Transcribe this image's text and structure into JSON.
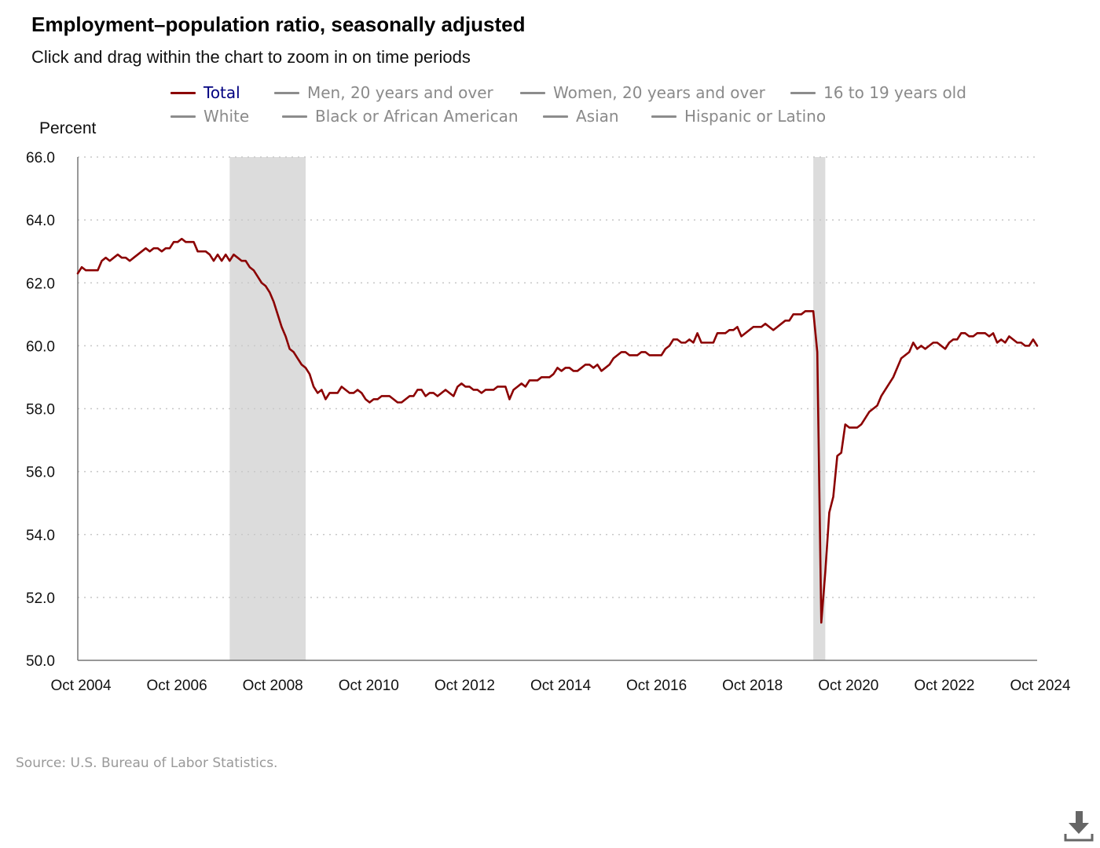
{
  "title": "Employment–population ratio, seasonally adjusted",
  "subtitle": "Click and drag within the chart to zoom in on time periods",
  "legend": {
    "items": [
      {
        "label": "Total",
        "active": true
      },
      {
        "label": "Men, 20 years and over",
        "active": false
      },
      {
        "label": "Women, 20 years and over",
        "active": false
      },
      {
        "label": "16 to 19 years old",
        "active": false
      },
      {
        "label": "White",
        "active": false
      },
      {
        "label": "Black or African American",
        "active": false
      },
      {
        "label": "Asian",
        "active": false
      },
      {
        "label": "Hispanic or Latino",
        "active": false
      }
    ]
  },
  "source": "Source: U.S. Bureau of Labor Statistics.",
  "icons": {
    "download": "download-icon"
  },
  "colors": {
    "series": "#8b0000",
    "inactive": "#8c8c8c",
    "recession": "#dcdcdc",
    "grid": "#c8c8c8",
    "active_label": "#000080"
  },
  "chart_data": {
    "type": "line",
    "ylabel": "Percent",
    "ylim": [
      50,
      66
    ],
    "yticks": [
      "66.0",
      "64.0",
      "62.0",
      "60.0",
      "58.0",
      "56.0",
      "54.0",
      "52.0",
      "50.0"
    ],
    "xlim": [
      "2004-10",
      "2024-10"
    ],
    "xticks": [
      "Oct 2004",
      "Oct 2006",
      "Oct 2008",
      "Oct 2010",
      "Oct 2012",
      "Oct 2014",
      "Oct 2016",
      "Oct 2018",
      "Oct 2020",
      "Oct 2022",
      "Oct 2024"
    ],
    "grid": "horizontal dotted",
    "recessions": [
      [
        "2007-12",
        "2009-06"
      ],
      [
        "2020-02",
        "2020-04"
      ]
    ],
    "series": [
      {
        "name": "Total",
        "points": [
          [
            "2004-10",
            62.3
          ],
          [
            "2004-11",
            62.5
          ],
          [
            "2004-12",
            62.4
          ],
          [
            "2005-01",
            62.4
          ],
          [
            "2005-02",
            62.4
          ],
          [
            "2005-03",
            62.4
          ],
          [
            "2005-04",
            62.7
          ],
          [
            "2005-05",
            62.8
          ],
          [
            "2005-06",
            62.7
          ],
          [
            "2005-07",
            62.8
          ],
          [
            "2005-08",
            62.9
          ],
          [
            "2005-09",
            62.8
          ],
          [
            "2005-10",
            62.8
          ],
          [
            "2005-11",
            62.7
          ],
          [
            "2005-12",
            62.8
          ],
          [
            "2006-01",
            62.9
          ],
          [
            "2006-02",
            63.0
          ],
          [
            "2006-03",
            63.1
          ],
          [
            "2006-04",
            63.0
          ],
          [
            "2006-05",
            63.1
          ],
          [
            "2006-06",
            63.1
          ],
          [
            "2006-07",
            63.0
          ],
          [
            "2006-08",
            63.1
          ],
          [
            "2006-09",
            63.1
          ],
          [
            "2006-10",
            63.3
          ],
          [
            "2006-11",
            63.3
          ],
          [
            "2006-12",
            63.4
          ],
          [
            "2007-01",
            63.3
          ],
          [
            "2007-02",
            63.3
          ],
          [
            "2007-03",
            63.3
          ],
          [
            "2007-04",
            63.0
          ],
          [
            "2007-05",
            63.0
          ],
          [
            "2007-06",
            63.0
          ],
          [
            "2007-07",
            62.9
          ],
          [
            "2007-08",
            62.7
          ],
          [
            "2007-09",
            62.9
          ],
          [
            "2007-10",
            62.7
          ],
          [
            "2007-11",
            62.9
          ],
          [
            "2007-12",
            62.7
          ],
          [
            "2008-01",
            62.9
          ],
          [
            "2008-02",
            62.8
          ],
          [
            "2008-03",
            62.7
          ],
          [
            "2008-04",
            62.7
          ],
          [
            "2008-05",
            62.5
          ],
          [
            "2008-06",
            62.4
          ],
          [
            "2008-07",
            62.2
          ],
          [
            "2008-08",
            62.0
          ],
          [
            "2008-09",
            61.9
          ],
          [
            "2008-10",
            61.7
          ],
          [
            "2008-11",
            61.4
          ],
          [
            "2008-12",
            61.0
          ],
          [
            "2009-01",
            60.6
          ],
          [
            "2009-02",
            60.3
          ],
          [
            "2009-03",
            59.9
          ],
          [
            "2009-04",
            59.8
          ],
          [
            "2009-05",
            59.6
          ],
          [
            "2009-06",
            59.4
          ],
          [
            "2009-07",
            59.3
          ],
          [
            "2009-08",
            59.1
          ],
          [
            "2009-09",
            58.7
          ],
          [
            "2009-10",
            58.5
          ],
          [
            "2009-11",
            58.6
          ],
          [
            "2009-12",
            58.3
          ],
          [
            "2010-01",
            58.5
          ],
          [
            "2010-02",
            58.5
          ],
          [
            "2010-03",
            58.5
          ],
          [
            "2010-04",
            58.7
          ],
          [
            "2010-05",
            58.6
          ],
          [
            "2010-06",
            58.5
          ],
          [
            "2010-07",
            58.5
          ],
          [
            "2010-08",
            58.6
          ],
          [
            "2010-09",
            58.5
          ],
          [
            "2010-10",
            58.3
          ],
          [
            "2010-11",
            58.2
          ],
          [
            "2010-12",
            58.3
          ],
          [
            "2011-01",
            58.3
          ],
          [
            "2011-02",
            58.4
          ],
          [
            "2011-03",
            58.4
          ],
          [
            "2011-04",
            58.4
          ],
          [
            "2011-05",
            58.3
          ],
          [
            "2011-06",
            58.2
          ],
          [
            "2011-07",
            58.2
          ],
          [
            "2011-08",
            58.3
          ],
          [
            "2011-09",
            58.4
          ],
          [
            "2011-10",
            58.4
          ],
          [
            "2011-11",
            58.6
          ],
          [
            "2011-12",
            58.6
          ],
          [
            "2012-01",
            58.4
          ],
          [
            "2012-02",
            58.5
          ],
          [
            "2012-03",
            58.5
          ],
          [
            "2012-04",
            58.4
          ],
          [
            "2012-05",
            58.5
          ],
          [
            "2012-06",
            58.6
          ],
          [
            "2012-07",
            58.5
          ],
          [
            "2012-08",
            58.4
          ],
          [
            "2012-09",
            58.7
          ],
          [
            "2012-10",
            58.8
          ],
          [
            "2012-11",
            58.7
          ],
          [
            "2012-12",
            58.7
          ],
          [
            "2013-01",
            58.6
          ],
          [
            "2013-02",
            58.6
          ],
          [
            "2013-03",
            58.5
          ],
          [
            "2013-04",
            58.6
          ],
          [
            "2013-05",
            58.6
          ],
          [
            "2013-06",
            58.6
          ],
          [
            "2013-07",
            58.7
          ],
          [
            "2013-08",
            58.7
          ],
          [
            "2013-09",
            58.7
          ],
          [
            "2013-10",
            58.3
          ],
          [
            "2013-11",
            58.6
          ],
          [
            "2013-12",
            58.7
          ],
          [
            "2014-01",
            58.8
          ],
          [
            "2014-02",
            58.7
          ],
          [
            "2014-03",
            58.9
          ],
          [
            "2014-04",
            58.9
          ],
          [
            "2014-05",
            58.9
          ],
          [
            "2014-06",
            59.0
          ],
          [
            "2014-07",
            59.0
          ],
          [
            "2014-08",
            59.0
          ],
          [
            "2014-09",
            59.1
          ],
          [
            "2014-10",
            59.3
          ],
          [
            "2014-11",
            59.2
          ],
          [
            "2014-12",
            59.3
          ],
          [
            "2015-01",
            59.3
          ],
          [
            "2015-02",
            59.2
          ],
          [
            "2015-03",
            59.2
          ],
          [
            "2015-04",
            59.3
          ],
          [
            "2015-05",
            59.4
          ],
          [
            "2015-06",
            59.4
          ],
          [
            "2015-07",
            59.3
          ],
          [
            "2015-08",
            59.4
          ],
          [
            "2015-09",
            59.2
          ],
          [
            "2015-10",
            59.3
          ],
          [
            "2015-11",
            59.4
          ],
          [
            "2015-12",
            59.6
          ],
          [
            "2016-01",
            59.7
          ],
          [
            "2016-02",
            59.8
          ],
          [
            "2016-03",
            59.8
          ],
          [
            "2016-04",
            59.7
          ],
          [
            "2016-05",
            59.7
          ],
          [
            "2016-06",
            59.7
          ],
          [
            "2016-07",
            59.8
          ],
          [
            "2016-08",
            59.8
          ],
          [
            "2016-09",
            59.7
          ],
          [
            "2016-10",
            59.7
          ],
          [
            "2016-11",
            59.7
          ],
          [
            "2016-12",
            59.7
          ],
          [
            "2017-01",
            59.9
          ],
          [
            "2017-02",
            60.0
          ],
          [
            "2017-03",
            60.2
          ],
          [
            "2017-04",
            60.2
          ],
          [
            "2017-05",
            60.1
          ],
          [
            "2017-06",
            60.1
          ],
          [
            "2017-07",
            60.2
          ],
          [
            "2017-08",
            60.1
          ],
          [
            "2017-09",
            60.4
          ],
          [
            "2017-10",
            60.1
          ],
          [
            "2017-11",
            60.1
          ],
          [
            "2017-12",
            60.1
          ],
          [
            "2018-01",
            60.1
          ],
          [
            "2018-02",
            60.4
          ],
          [
            "2018-03",
            60.4
          ],
          [
            "2018-04",
            60.4
          ],
          [
            "2018-05",
            60.5
          ],
          [
            "2018-06",
            60.5
          ],
          [
            "2018-07",
            60.6
          ],
          [
            "2018-08",
            60.3
          ],
          [
            "2018-09",
            60.4
          ],
          [
            "2018-10",
            60.5
          ],
          [
            "2018-11",
            60.6
          ],
          [
            "2018-12",
            60.6
          ],
          [
            "2019-01",
            60.6
          ],
          [
            "2019-02",
            60.7
          ],
          [
            "2019-03",
            60.6
          ],
          [
            "2019-04",
            60.5
          ],
          [
            "2019-05",
            60.6
          ],
          [
            "2019-06",
            60.7
          ],
          [
            "2019-07",
            60.8
          ],
          [
            "2019-08",
            60.8
          ],
          [
            "2019-09",
            61.0
          ],
          [
            "2019-10",
            61.0
          ],
          [
            "2019-11",
            61.0
          ],
          [
            "2019-12",
            61.1
          ],
          [
            "2020-01",
            61.1
          ],
          [
            "2020-02",
            61.1
          ],
          [
            "2020-03",
            59.8
          ],
          [
            "2020-04",
            51.2
          ],
          [
            "2020-05",
            52.8
          ],
          [
            "2020-06",
            54.7
          ],
          [
            "2020-07",
            55.2
          ],
          [
            "2020-08",
            56.5
          ],
          [
            "2020-09",
            56.6
          ],
          [
            "2020-10",
            57.5
          ],
          [
            "2020-11",
            57.4
          ],
          [
            "2020-12",
            57.4
          ],
          [
            "2021-01",
            57.4
          ],
          [
            "2021-02",
            57.5
          ],
          [
            "2021-03",
            57.7
          ],
          [
            "2021-04",
            57.9
          ],
          [
            "2021-05",
            58.0
          ],
          [
            "2021-06",
            58.1
          ],
          [
            "2021-07",
            58.4
          ],
          [
            "2021-08",
            58.6
          ],
          [
            "2021-09",
            58.8
          ],
          [
            "2021-10",
            59.0
          ],
          [
            "2021-11",
            59.3
          ],
          [
            "2021-12",
            59.6
          ],
          [
            "2022-01",
            59.7
          ],
          [
            "2022-02",
            59.8
          ],
          [
            "2022-03",
            60.1
          ],
          [
            "2022-04",
            59.9
          ],
          [
            "2022-05",
            60.0
          ],
          [
            "2022-06",
            59.9
          ],
          [
            "2022-07",
            60.0
          ],
          [
            "2022-08",
            60.1
          ],
          [
            "2022-09",
            60.1
          ],
          [
            "2022-10",
            60.0
          ],
          [
            "2022-11",
            59.9
          ],
          [
            "2022-12",
            60.1
          ],
          [
            "2023-01",
            60.2
          ],
          [
            "2023-02",
            60.2
          ],
          [
            "2023-03",
            60.4
          ],
          [
            "2023-04",
            60.4
          ],
          [
            "2023-05",
            60.3
          ],
          [
            "2023-06",
            60.3
          ],
          [
            "2023-07",
            60.4
          ],
          [
            "2023-08",
            60.4
          ],
          [
            "2023-09",
            60.4
          ],
          [
            "2023-10",
            60.3
          ],
          [
            "2023-11",
            60.4
          ],
          [
            "2023-12",
            60.1
          ],
          [
            "2024-01",
            60.2
          ],
          [
            "2024-02",
            60.1
          ],
          [
            "2024-03",
            60.3
          ],
          [
            "2024-04",
            60.2
          ],
          [
            "2024-05",
            60.1
          ],
          [
            "2024-06",
            60.1
          ],
          [
            "2024-07",
            60.0
          ],
          [
            "2024-08",
            60.0
          ],
          [
            "2024-09",
            60.2
          ],
          [
            "2024-10",
            60.0
          ]
        ]
      }
    ]
  }
}
